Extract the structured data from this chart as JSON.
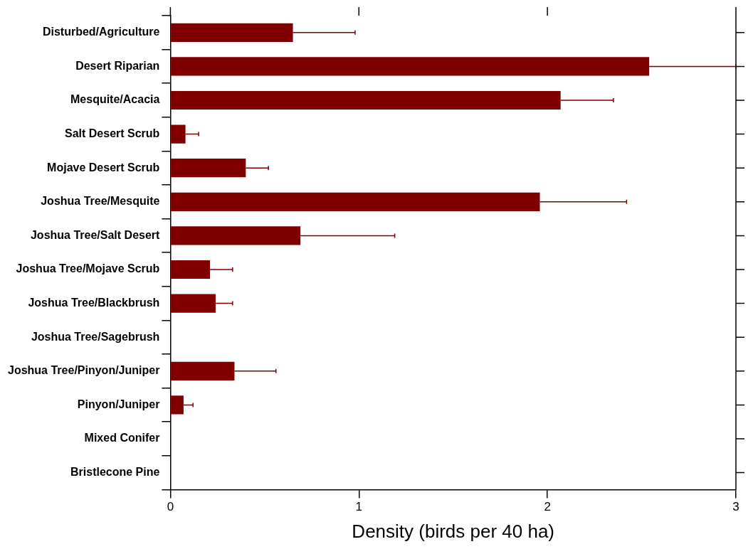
{
  "chart_data": {
    "type": "bar",
    "orientation": "horizontal",
    "xlabel": "Density (birds per 40 ha)",
    "categories": [
      "Disturbed/Agriculture",
      "Desert Riparian",
      "Mesquite/Acacia",
      "Salt Desert Scrub",
      "Mojave Desert Scrub",
      "Joshua Tree/Mesquite",
      "Joshua Tree/Salt Desert",
      "Joshua Tree/Mojave Scrub",
      "Joshua Tree/Blackbrush",
      "Joshua Tree/Sagebrush",
      "Joshua Tree/Pinyon/Juniper",
      "Pinyon/Juniper",
      "Mixed Conifer",
      "Bristlecone Pine"
    ],
    "values": [
      0.65,
      2.54,
      2.07,
      0.08,
      0.4,
      1.96,
      0.69,
      0.21,
      0.24,
      0,
      0.34,
      0.07,
      0,
      0
    ],
    "errors": [
      [
        0.65,
        0.98
      ],
      [
        2.54,
        3.0
      ],
      [
        2.07,
        2.35
      ],
      [
        0.08,
        0.15
      ],
      [
        0.4,
        0.52
      ],
      [
        1.96,
        2.42
      ],
      [
        0.69,
        1.19
      ],
      [
        0.21,
        0.33
      ],
      [
        0.24,
        0.33
      ],
      null,
      [
        0.34,
        0.56
      ],
      [
        0.07,
        0.12
      ],
      null,
      null
    ],
    "color": "#800000",
    "xlim": [
      0,
      3
    ],
    "xticks": [
      0,
      1,
      2,
      3
    ],
    "grid": false,
    "legend": false
  }
}
